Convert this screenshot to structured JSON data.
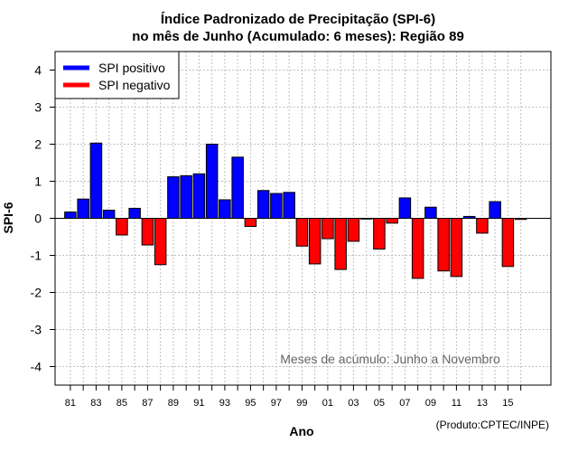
{
  "chart_data": {
    "type": "bar",
    "title": "Índice Padronizado de Precipitação (SPI-6)",
    "subtitle": "no mês de Junho (Acumulado: 6 meses): Região 89",
    "xlabel": "Ano",
    "ylabel": "SPI-6",
    "ylim": [
      -4.5,
      4.5
    ],
    "yticks": [
      -4,
      -3,
      -2,
      -1,
      0,
      1,
      2,
      3,
      4
    ],
    "grid": true,
    "legend_position": "top-left",
    "legend": [
      {
        "label": "SPI positivo",
        "color": "#0000ff"
      },
      {
        "label": "SPI negativo",
        "color": "#ff0000"
      }
    ],
    "annotation": "Meses de acúmulo: Junho a Novembro",
    "credit": "(Produto:CPTEC/INPE)",
    "xtick_labels": [
      "81",
      "83",
      "85",
      "87",
      "89",
      "91",
      "93",
      "95",
      "97",
      "99",
      "01",
      "03",
      "05",
      "07",
      "09",
      "11",
      "13",
      "15"
    ],
    "categories": [
      "1981",
      "1982",
      "1983",
      "1984",
      "1985",
      "1986",
      "1987",
      "1988",
      "1989",
      "1990",
      "1991",
      "1992",
      "1993",
      "1994",
      "1995",
      "1996",
      "1997",
      "1998",
      "1999",
      "2000",
      "2001",
      "2002",
      "2003",
      "2004",
      "2005",
      "2006",
      "2007",
      "2008",
      "2009",
      "2010",
      "2011",
      "2012",
      "2013",
      "2014",
      "2015",
      "2016"
    ],
    "values": [
      0.17,
      0.52,
      2.03,
      0.22,
      -0.45,
      0.27,
      -0.72,
      -1.25,
      1.12,
      1.15,
      1.2,
      2.0,
      0.5,
      1.65,
      -0.22,
      0.75,
      0.67,
      0.7,
      -0.75,
      -1.23,
      -0.55,
      -1.38,
      -0.62,
      -0.02,
      -0.83,
      -0.13,
      0.55,
      -1.62,
      0.3,
      -1.42,
      -1.57,
      0.05,
      -0.4,
      0.45,
      -1.3,
      -0.03
    ],
    "colors": {
      "positive": "#0000ff",
      "negative": "#ff0000",
      "grid": "#c0c0c0",
      "annotation": "#666666"
    }
  }
}
